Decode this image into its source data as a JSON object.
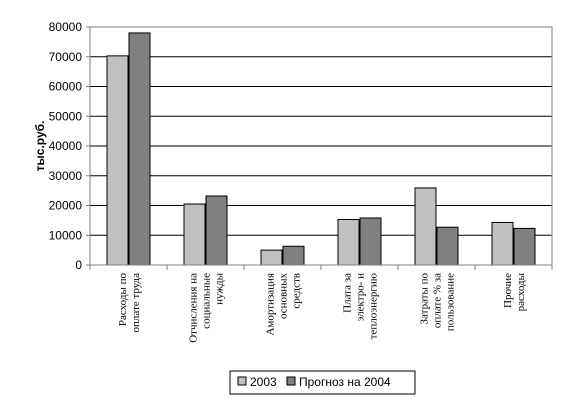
{
  "chart_data": {
    "type": "bar",
    "title": "",
    "xlabel": "",
    "ylabel": "тыс.руб.",
    "ylim": [
      0,
      80000
    ],
    "yticks": [
      0,
      10000,
      20000,
      30000,
      40000,
      50000,
      60000,
      70000,
      80000
    ],
    "grid": true,
    "legend_position": "bottom",
    "categories": [
      [
        "Расходы по",
        "оплате труда"
      ],
      [
        "Отчисления на",
        "социальные",
        "нужды"
      ],
      [
        "Амортизация",
        "основных",
        "средств"
      ],
      [
        "Плата за",
        "электро- и",
        "теплоэнергию"
      ],
      [
        "Затраты по",
        "оплате % за",
        "пользование"
      ],
      [
        "Прочие",
        "расходы"
      ]
    ],
    "series": [
      {
        "name": "2003",
        "color": "#c0c0c0",
        "values": [
          70300,
          20500,
          5000,
          15300,
          25900,
          14300
        ]
      },
      {
        "name": "Прогноз на 2004",
        "color": "#808080",
        "values": [
          78000,
          23200,
          6300,
          15800,
          12700,
          12300
        ]
      }
    ]
  }
}
